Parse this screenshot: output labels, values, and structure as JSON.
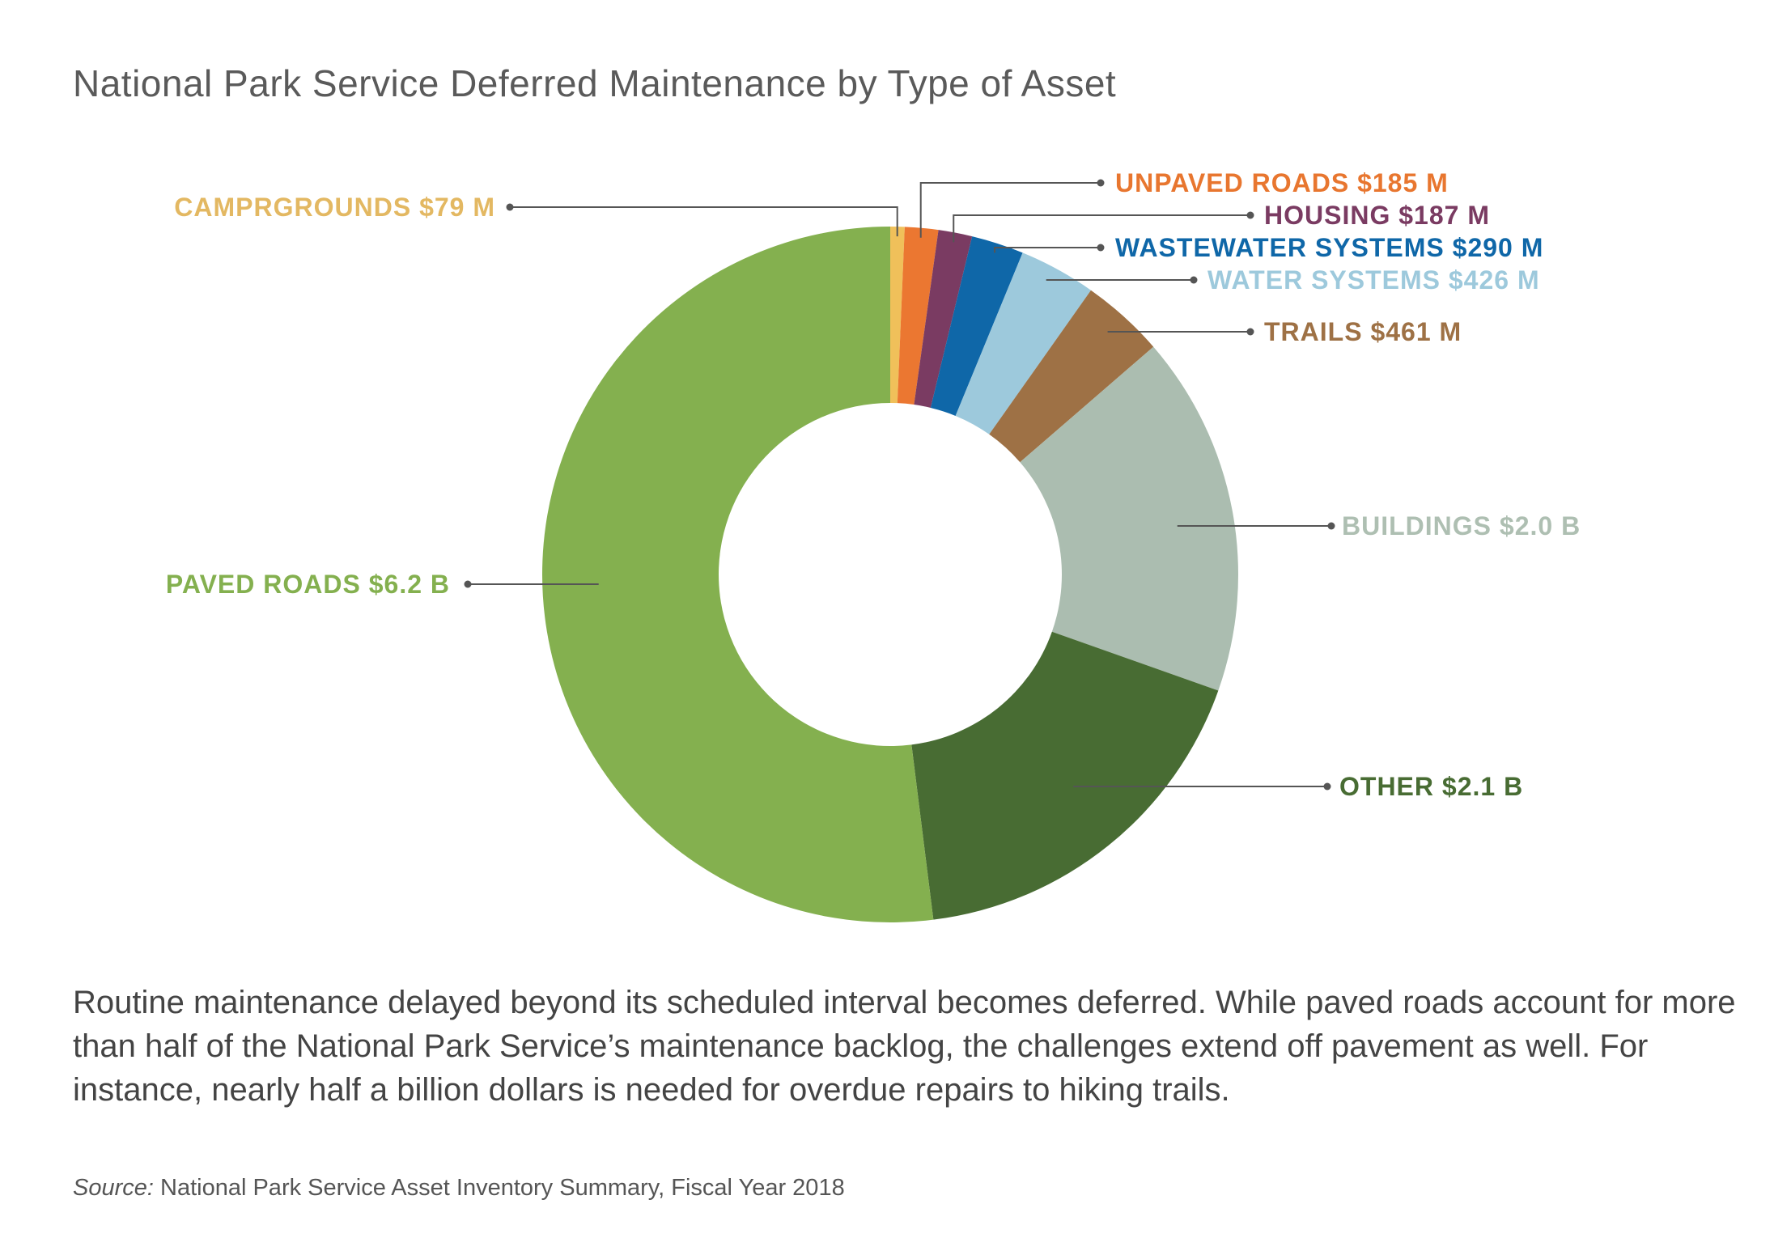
{
  "title": "National Park Service Deferred Maintenance by Type of Asset",
  "chart_data": {
    "type": "pie",
    "style": "donut",
    "title": "National Park Service Deferred Maintenance by Type of Asset",
    "unit": "USD",
    "slices": [
      {
        "label": "CAMPRGROUNDS $79 M",
        "value": 79,
        "color": "#F0C05A"
      },
      {
        "label": "UNPAVED ROADS $185 M",
        "value": 185,
        "color": "#EB7731"
      },
      {
        "label": "HOUSING $187 M",
        "value": 187,
        "color": "#7A3B62"
      },
      {
        "label": "WASTEWATER SYSTEMS $290 M",
        "value": 290,
        "color": "#0F67A8"
      },
      {
        "label": "WATER SYSTEMS $426 M",
        "value": 426,
        "color": "#9DC9DC"
      },
      {
        "label": "TRAILS $461 M",
        "value": 461,
        "color": "#9E7145"
      },
      {
        "label": "BUILDINGS $2.0 B",
        "value": 2000,
        "color": "#ABBDB0"
      },
      {
        "label": "OTHER $2.1 B",
        "value": 2100,
        "color": "#486C33"
      },
      {
        "label": "PAVED ROADS $6.2 B",
        "value": 6200,
        "color": "#84B04F"
      }
    ],
    "label_colors": [
      "#E3B862",
      "#E8762F",
      "#7A3B62",
      "#0F67A8",
      "#9DC9DC",
      "#9E7145",
      "#AEBFB2",
      "#486C33",
      "#84B04F"
    ]
  },
  "description": "Routine maintenance delayed beyond its scheduled interval becomes deferred. While paved roads account for more than half of the National Park Service’s maintenance backlog, the challenges extend off pavement as well. For instance, nearly half a billion dollars is needed for overdue repairs to hiking trails.",
  "source": {
    "label": "Source:",
    "text": " National Park Service Asset Inventory Summary, Fiscal Year 2018"
  }
}
